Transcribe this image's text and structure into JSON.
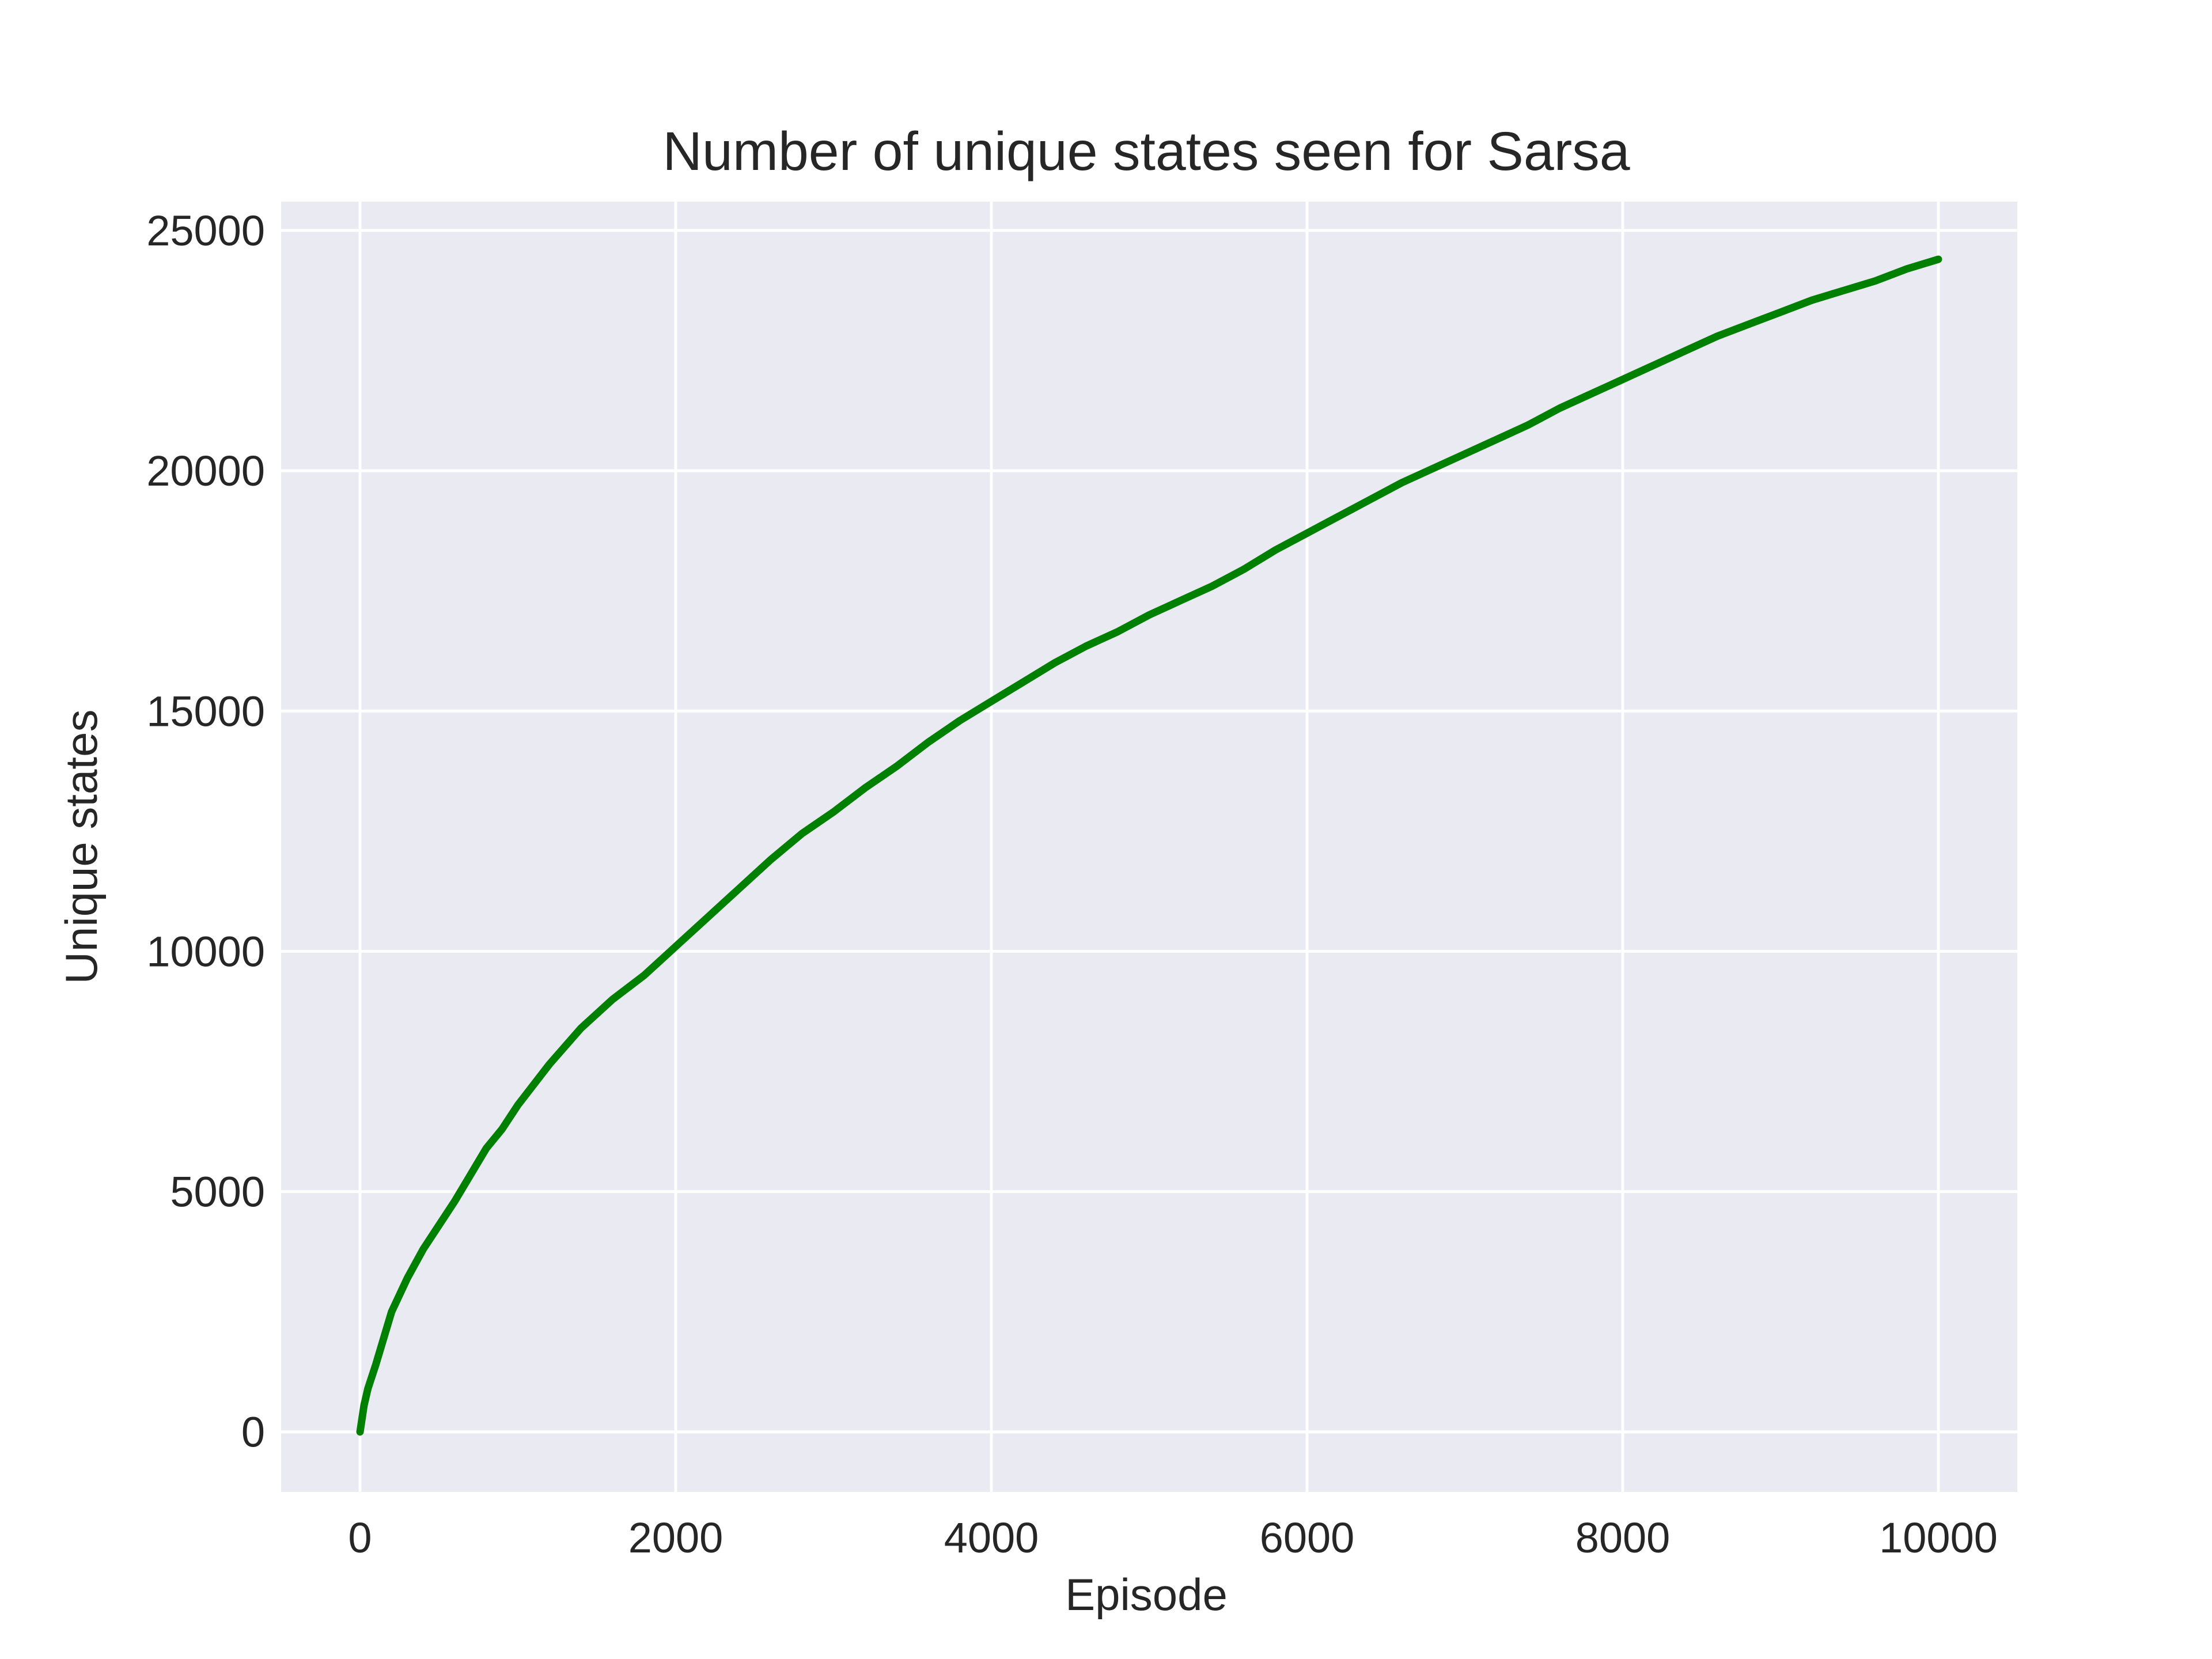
{
  "chart_data": {
    "type": "line",
    "title": "Number of unique states seen for Sarsa",
    "xlabel": "Episode",
    "ylabel": "Unique states",
    "xlim": [
      -500,
      10500
    ],
    "ylim": [
      -1250,
      25600
    ],
    "xticks": [
      0,
      2000,
      4000,
      6000,
      8000,
      10000
    ],
    "xtick_labels": [
      "0",
      "2000",
      "4000",
      "6000",
      "8000",
      "10000"
    ],
    "yticks": [
      0,
      5000,
      10000,
      15000,
      20000,
      25000
    ],
    "ytick_labels": [
      "0",
      "5000",
      "10000",
      "15000",
      "20000",
      "25000"
    ],
    "grid": true,
    "background_color": "#eaeaf2",
    "series": [
      {
        "color": "#008000",
        "x": [
          0,
          25,
          50,
          100,
          150,
          200,
          300,
          400,
          500,
          600,
          700,
          800,
          900,
          1000,
          1200,
          1400,
          1600,
          1800,
          2000,
          2200,
          2400,
          2600,
          2800,
          3000,
          3200,
          3400,
          3600,
          3800,
          4000,
          4200,
          4400,
          4600,
          4800,
          5000,
          5200,
          5400,
          5600,
          5800,
          6000,
          6200,
          6400,
          6600,
          6800,
          7000,
          7200,
          7400,
          7600,
          7800,
          8000,
          8200,
          8400,
          8600,
          8800,
          9000,
          9200,
          9400,
          9600,
          9800,
          10000
        ],
        "y": [
          0,
          550,
          900,
          1400,
          1950,
          2500,
          3200,
          3800,
          4300,
          4800,
          5350,
          5900,
          6300,
          6800,
          7650,
          8400,
          9000,
          9500,
          10100,
          10700,
          11300,
          11900,
          12450,
          12900,
          13400,
          13850,
          14350,
          14800,
          15200,
          15600,
          16000,
          16350,
          16650,
          17000,
          17300,
          17600,
          17950,
          18350,
          18700,
          19050,
          19400,
          19750,
          20050,
          20350,
          20650,
          20950,
          21300,
          21600,
          21900,
          22200,
          22500,
          22800,
          23050,
          23300,
          23550,
          23750,
          23950,
          24200,
          24400
        ]
      }
    ]
  }
}
